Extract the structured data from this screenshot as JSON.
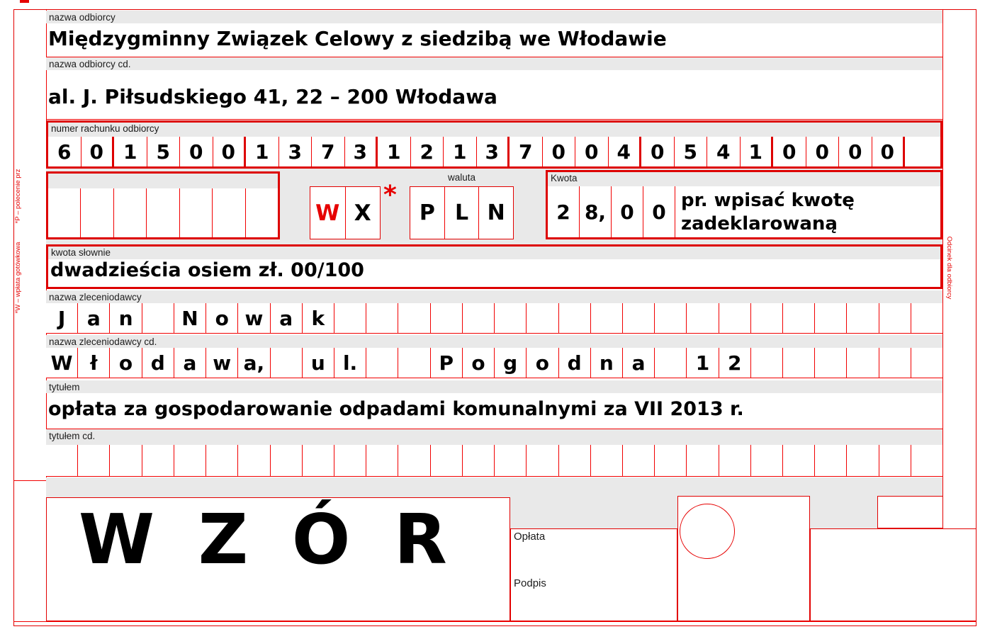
{
  "colors": {
    "red_line": "#f10000",
    "red_thick": "#dd0000",
    "red_text": "#e60000",
    "grey_bar": "#e9e9e9",
    "text": "#000000"
  },
  "side_labels": {
    "left_top": "*P – polecenie prz",
    "left_bottom": "*W – wpłata gotówkowa",
    "right": "Odcinek dla odbiorcy"
  },
  "recipient": {
    "label": "nazwa odbiorcy",
    "value": "Międzygminny Związek Celowy z siedzibą we Włodawie"
  },
  "recipient_cd": {
    "label": "nazwa odbiorcy cd.",
    "value": "al. J. Piłsudskiego 41, 22 – 200 Włodawa"
  },
  "account": {
    "label": "numer rachunku odbiorcy",
    "digits": [
      "6",
      "0",
      "1",
      "5",
      "0",
      "0",
      "1",
      "3",
      "7",
      "3",
      "1",
      "2",
      "1",
      "3",
      "7",
      "0",
      "0",
      "4",
      "0",
      "5",
      "4",
      "1",
      "0",
      "0",
      "0",
      "0"
    ]
  },
  "spare_row": {
    "cells": [
      "",
      "",
      "",
      "",
      "",
      "",
      ""
    ]
  },
  "payment_type": {
    "w": "W",
    "x": "X",
    "asterisk": "*"
  },
  "currency": {
    "label": "waluta",
    "cells": [
      "P",
      "L",
      "N"
    ]
  },
  "amount": {
    "label": "Kwota",
    "cells": [
      "2",
      "8,",
      "0",
      "0"
    ],
    "note_line1": "pr. wpisać kwotę",
    "note_line2": "zadeklarowaną"
  },
  "amount_words": {
    "label": "kwota słownie",
    "value": "dwadzieścia osiem zł. 00/100"
  },
  "payer": {
    "label": "nazwa zleceniodawcy",
    "cells": [
      "J",
      "a",
      "n",
      "",
      "N",
      "o",
      "w",
      "a",
      "k",
      "",
      "",
      "",
      "",
      "",
      "",
      "",
      "",
      "",
      "",
      "",
      "",
      "",
      "",
      "",
      "",
      "",
      "",
      ""
    ]
  },
  "payer_cd": {
    "label": "nazwa zleceniodawcy cd.",
    "cells": [
      "W",
      "ł",
      "o",
      "d",
      "a",
      "w",
      "a,",
      "",
      "u",
      "l.",
      "",
      "",
      "P",
      "o",
      "g",
      "o",
      "d",
      "n",
      "a",
      "",
      "1",
      "2",
      "",
      "",
      "",
      "",
      "",
      ""
    ]
  },
  "title": {
    "label": "tytułem",
    "value": "opłata za gospodarowanie odpadami komunalnymi za VII 2013 r."
  },
  "title_cd": {
    "label": "tytułem cd.",
    "cells": [
      "",
      "",
      "",
      "",
      "",
      "",
      "",
      "",
      "",
      "",
      "",
      "",
      "",
      "",
      "",
      "",
      "",
      "",
      "",
      "",
      "",
      "",
      "",
      "",
      "",
      "",
      "",
      ""
    ]
  },
  "watermark": "W Z Ó R",
  "bottom": {
    "fee_label": "Opłata",
    "signature_label": "Podpis"
  }
}
